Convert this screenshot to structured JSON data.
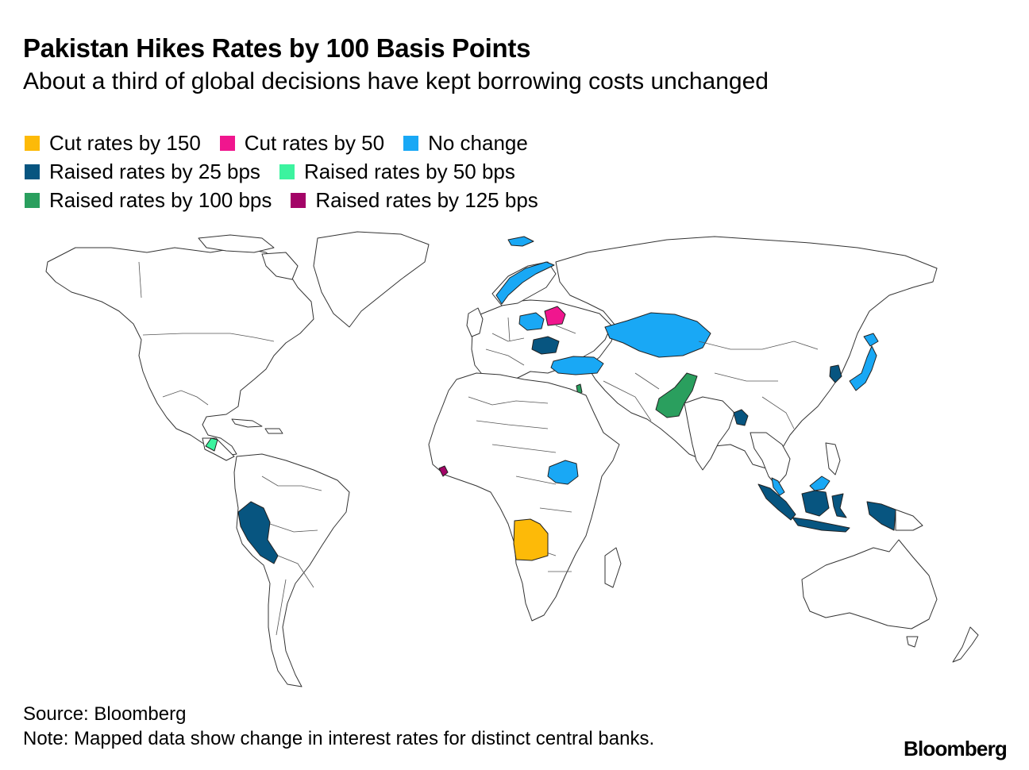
{
  "title": "Pakistan Hikes Rates by 100 Basis Points",
  "subtitle": "About a third of global decisions have kept borrowing costs unchanged",
  "legend": [
    [
      {
        "label": "Cut rates by 150",
        "color": "#FDBA08"
      },
      {
        "label": "Cut rates by 50",
        "color": "#F0168E"
      },
      {
        "label": "No change",
        "color": "#19A8F5"
      }
    ],
    [
      {
        "label": "Raised rates by 25 bps",
        "color": "#075580"
      },
      {
        "label": "Raised rates by 50 bps",
        "color": "#3CF39F"
      }
    ],
    [
      {
        "label": "Raised rates by 100 bps",
        "color": "#2A9F5E"
      },
      {
        "label": "Raised rates by 125 bps",
        "color": "#A30467"
      }
    ]
  ],
  "map_data": {
    "type": "choropleth",
    "categories": {
      "cut150": "#FDBA08",
      "cut50": "#F0168E",
      "nochange": "#19A8F5",
      "raise25": "#075580",
      "raise50": "#3CF39F",
      "raise100": "#2A9F5E",
      "raise125": "#A30467"
    }
  },
  "footer": {
    "source": "Source: Bloomberg",
    "note": "Note: Mapped data show change in interest rates for distinct central banks."
  },
  "logo": "Bloomberg"
}
